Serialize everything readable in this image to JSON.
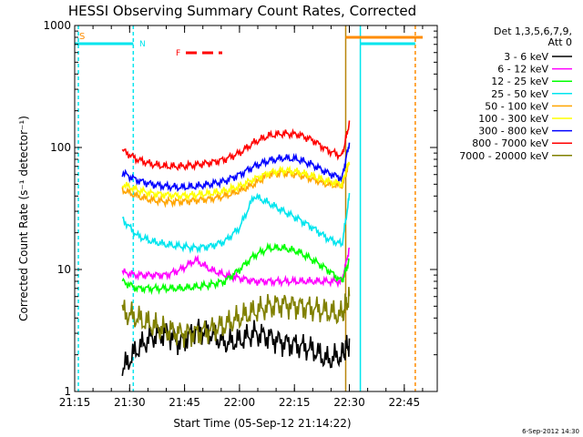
{
  "chart_data": {
    "type": "line",
    "title": "HESSI Observing Summary Count Rates, Corrected",
    "xlabel": "Start Time (05-Sep-12 21:14:22)",
    "ylabel": "Corrected Count Rate (s⁻¹ detector⁻¹)",
    "y_scale": "log",
    "ylim": [
      1,
      1000
    ],
    "xlim_minutes": [
      21.25,
      22.9
    ],
    "x_ticks": [
      "21:15",
      "21:30",
      "21:45",
      "22:00",
      "22:15",
      "22:30",
      "22:45"
    ],
    "y_ticks": [
      "1",
      "10",
      "100",
      "1000"
    ],
    "legend_header": [
      "Det 1,3,5,6,7,9,",
      "Att 0"
    ],
    "footer_date": "6-Sep-2012 14:30",
    "flags": {
      "s_label": "S",
      "n_label": "N",
      "f_label": "F"
    },
    "vertical_markers": [
      {
        "time": "21:16",
        "color": "#00e5ee",
        "dashed": true
      },
      {
        "time": "21:31",
        "color": "#00e5ee",
        "dashed": true
      },
      {
        "time": "22:29",
        "color": "#b8860b",
        "dashed": false
      },
      {
        "time": "22:33",
        "color": "#00e5ee",
        "dashed": false
      },
      {
        "time": "22:48",
        "color": "#ff8c00",
        "dashed": true
      }
    ],
    "series": [
      {
        "name": "3 - 6 keV",
        "color": "#000000",
        "values": [
          null,
          1.5,
          2.2,
          2.8,
          3.0,
          2.5,
          3.2,
          3.0,
          2.5,
          2.6,
          3.0,
          2.8,
          2.5,
          2.4,
          2.2,
          1.8,
          2.0,
          2.5
        ]
      },
      {
        "name": "6 - 12 keV",
        "color": "#ff00ff",
        "values": [
          null,
          9.5,
          9.0,
          9.0,
          9.0,
          10.0,
          12.0,
          10.0,
          9.0,
          8.5,
          8.0,
          8.0,
          8.0,
          8.0,
          8.0,
          8.0,
          8.0,
          15.0
        ]
      },
      {
        "name": "12 - 25 keV",
        "color": "#00ff00",
        "values": [
          null,
          8.0,
          7.0,
          7.0,
          7.0,
          7.0,
          7.2,
          7.5,
          8.0,
          10.0,
          13.0,
          15.0,
          15.0,
          14.0,
          12.0,
          10.0,
          8.0,
          12.0
        ]
      },
      {
        "name": "25 - 50 keV",
        "color": "#00e5ee",
        "values": [
          null,
          26.0,
          19.0,
          17.0,
          16.0,
          15.5,
          15.0,
          15.5,
          17.0,
          22.0,
          40.0,
          35.0,
          30.0,
          26.0,
          22.0,
          18.0,
          16.0,
          40.0
        ]
      },
      {
        "name": "50 - 100 keV",
        "color": "#ffa500",
        "values": [
          null,
          45.0,
          40.0,
          37.0,
          36.0,
          36.0,
          37.0,
          38.0,
          40.0,
          44.0,
          50.0,
          60.0,
          62.0,
          60.0,
          55.0,
          50.0,
          48.0,
          75.0
        ]
      },
      {
        "name": "100 - 300 keV",
        "color": "#ffff00",
        "values": [
          null,
          50.0,
          45.0,
          42.0,
          41.0,
          40.0,
          41.0,
          42.0,
          44.0,
          48.0,
          55.0,
          62.0,
          65.0,
          63.0,
          58.0,
          53.0,
          50.0,
          78.0
        ]
      },
      {
        "name": "300 - 800 keV",
        "color": "#0000ff",
        "values": [
          null,
          62.0,
          54.0,
          50.0,
          48.0,
          47.0,
          48.0,
          50.0,
          53.0,
          60.0,
          70.0,
          78.0,
          82.0,
          80.0,
          72.0,
          62.0,
          56.0,
          110.0
        ]
      },
      {
        "name": "800 - 7000 keV",
        "color": "#ff0000",
        "values": [
          null,
          95.0,
          80.0,
          73.0,
          70.0,
          70.0,
          72.0,
          75.0,
          80.0,
          90.0,
          110.0,
          125.0,
          130.0,
          128.0,
          115.0,
          95.0,
          85.0,
          160.0
        ]
      },
      {
        "name": "7000 - 20000 keV",
        "color": "#808000",
        "values": [
          null,
          4.5,
          4.0,
          3.5,
          3.2,
          3.0,
          3.0,
          3.2,
          3.5,
          4.0,
          4.5,
          5.0,
          5.2,
          5.0,
          4.8,
          4.5,
          4.2,
          6.0
        ]
      }
    ],
    "x_times": [
      "21:15",
      "21:28",
      "21:32",
      "21:36",
      "21:40",
      "21:44",
      "21:48",
      "21:52",
      "21:56",
      "22:00",
      "22:04",
      "22:08",
      "22:12",
      "22:16",
      "22:20",
      "22:24",
      "22:28",
      "22:30"
    ]
  }
}
